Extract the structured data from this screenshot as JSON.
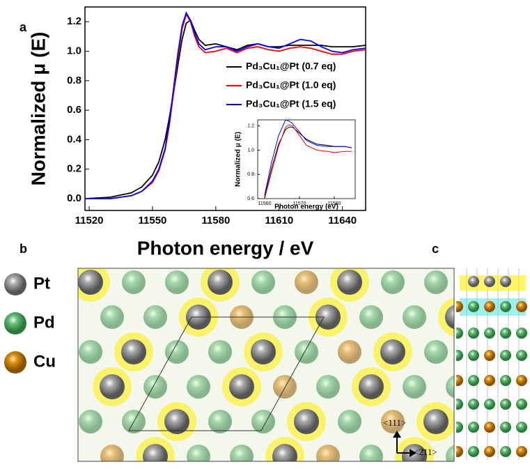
{
  "chart_data": [
    {
      "type": "line",
      "label": "a",
      "x_label": "Photon energy / eV",
      "y_label": "Normalized μ (E)",
      "x": [
        11518,
        11530,
        11540,
        11545,
        11550,
        11553,
        11556,
        11558,
        11560,
        11562,
        11564,
        11566,
        11568,
        11570,
        11572,
        11575,
        11580,
        11585,
        11590,
        11595,
        11600,
        11605,
        11610,
        11615,
        11620,
        11625,
        11630,
        11635,
        11640,
        11645,
        11651
      ],
      "series": [
        {
          "name": "Pd₃Cu₁@Pt (0.7 eq)",
          "color": "#000000",
          "values": [
            0.0,
            0.01,
            0.04,
            0.08,
            0.16,
            0.25,
            0.4,
            0.55,
            0.72,
            0.9,
            1.08,
            1.19,
            1.21,
            1.14,
            1.08,
            1.04,
            1.05,
            1.03,
            1.01,
            1.04,
            1.05,
            1.03,
            1.03,
            1.04,
            1.04,
            1.04,
            1.04,
            1.03,
            1.03,
            1.03,
            1.04
          ]
        },
        {
          "name": "Pd₃Cu₁@Pt (1.0 eq)",
          "color": "#ff0000",
          "values": [
            0.0,
            0.0,
            0.02,
            0.05,
            0.11,
            0.19,
            0.33,
            0.5,
            0.72,
            0.95,
            1.15,
            1.25,
            1.2,
            1.1,
            1.03,
            0.99,
            1.0,
            1.02,
            0.99,
            1.02,
            1.03,
            1.01,
            1.0,
            1.02,
            1.03,
            1.02,
            1.0,
            0.98,
            0.98,
            1.0,
            1.01
          ]
        },
        {
          "name": "Pd₃Cu₁@Pt (1.5 eq)",
          "color": "#0000ff",
          "values": [
            0.0,
            0.0,
            0.02,
            0.05,
            0.12,
            0.2,
            0.34,
            0.52,
            0.75,
            0.98,
            1.17,
            1.26,
            1.21,
            1.12,
            1.05,
            1.01,
            1.03,
            1.03,
            1.0,
            1.03,
            1.05,
            1.03,
            1.02,
            1.05,
            1.08,
            1.07,
            1.03,
            1.0,
            0.99,
            1.01,
            1.02
          ]
        }
      ],
      "xlim": [
        11518,
        11651
      ],
      "xticks": [
        11520,
        11550,
        11580,
        11610,
        11640
      ],
      "ylim": [
        -0.08,
        1.3
      ],
      "yticks": [
        {
          "value": 0,
          "label": "0.0"
        },
        0.2,
        0.4,
        0.6,
        0.8,
        {
          "value": 1,
          "label": "1.0"
        },
        1.2
      ],
      "legend": "upper right"
    },
    {
      "type": "line",
      "x_label": "Photon energy (eV)",
      "y_label": "Normalized μ (E)",
      "x": [
        11560,
        11562,
        11564,
        11566,
        11567,
        11568,
        11570,
        11572,
        11575,
        11578,
        11580,
        11583,
        11585
      ],
      "series": [
        {
          "color": "#000000",
          "values": [
            0.62,
            0.85,
            1.05,
            1.17,
            1.19,
            1.19,
            1.14,
            1.09,
            1.05,
            1.04,
            1.03,
            1.03,
            1.02
          ]
        },
        {
          "color": "#ff0000",
          "values": [
            0.6,
            0.82,
            1.03,
            1.19,
            1.21,
            1.2,
            1.12,
            1.04,
            1.0,
            0.99,
            0.98,
            0.99,
            0.99
          ]
        },
        {
          "color": "#0000ff",
          "values": [
            0.63,
            0.9,
            1.12,
            1.25,
            1.24,
            1.22,
            1.15,
            1.08,
            1.04,
            1.03,
            1.03,
            1.03,
            1.02
          ]
        }
      ],
      "xlim": [
        11558,
        11586
      ],
      "xticks": [
        11560,
        11570,
        11580
      ],
      "ylim": [
        0.6,
        1.25
      ],
      "yticks": [
        0.6,
        0.8,
        {
          "value": 1,
          "label": "1.0"
        },
        1.2
      ]
    }
  ],
  "panels": {
    "b_label": "b",
    "c_label": "c",
    "elements": [
      "Pt",
      "Pd",
      "Cu"
    ],
    "direction_up": "<111>",
    "direction_right": "<2̄11>"
  }
}
